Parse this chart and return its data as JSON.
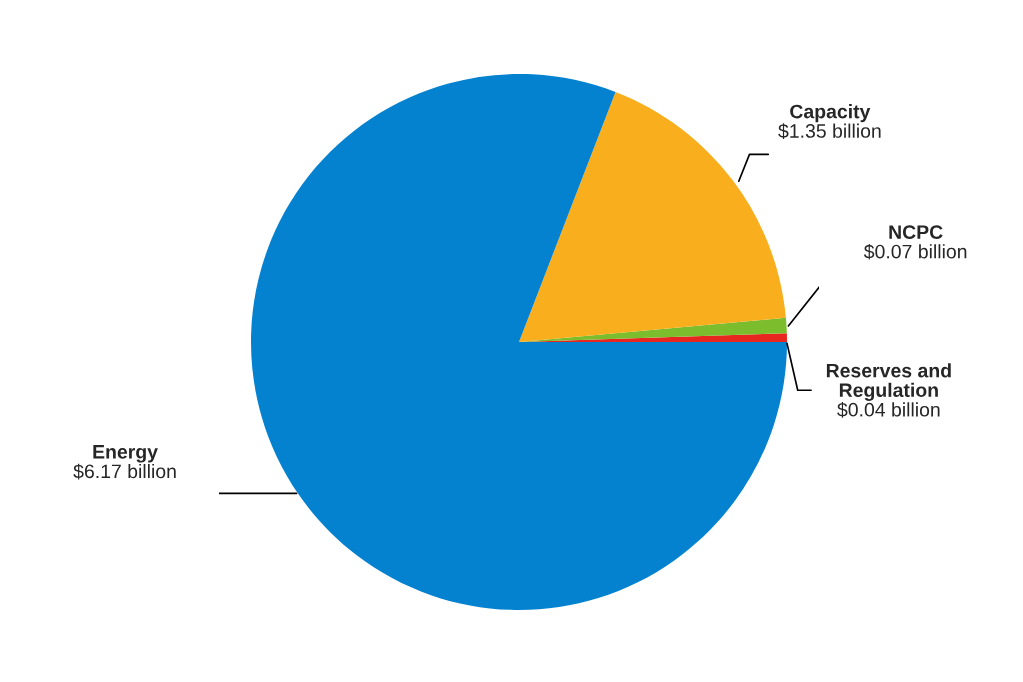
{
  "chart_data": {
    "type": "pie",
    "categories": [
      "Reserves and\nRegulation",
      "NCPC",
      "Capacity",
      "Energy"
    ],
    "values": [
      0.04,
      0.07,
      1.35,
      6.17
    ],
    "value_labels": [
      "$0.04 billion",
      "$0.07 billion",
      "$1.35 billion",
      "$6.17 billion"
    ],
    "colors": [
      "#e8261f",
      "#7bbd2c",
      "#f9ae1e",
      "#0482d0"
    ],
    "legend": false
  }
}
